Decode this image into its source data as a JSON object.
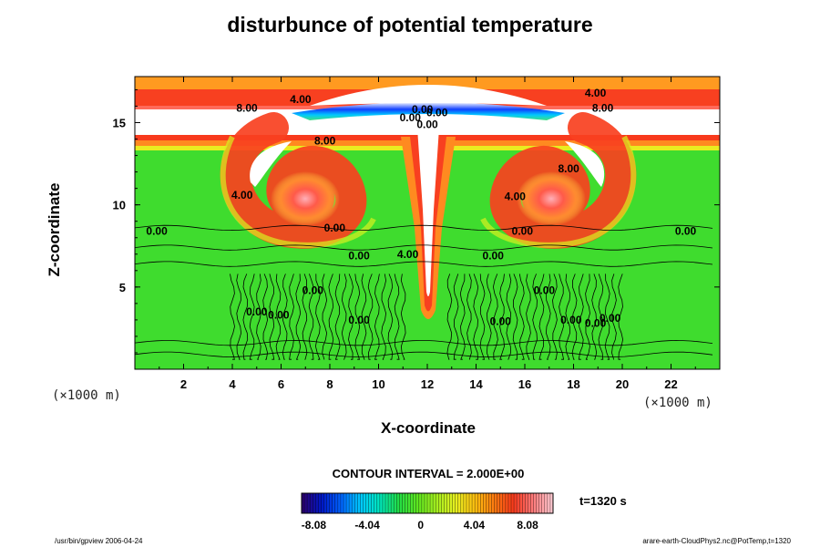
{
  "chart_data": {
    "type": "heatmap",
    "title": "disturbunce of potential temperature",
    "xlabel": "X-coordinate",
    "ylabel": "Z-coordinate",
    "x_unit": "(×1000 m)",
    "y_unit": "(×1000 m)",
    "xlim": [
      0,
      24
    ],
    "ylim": [
      0,
      17.8
    ],
    "x_ticks": [
      2,
      4,
      6,
      8,
      10,
      12,
      14,
      16,
      18,
      20,
      22
    ],
    "y_ticks": [
      5,
      10,
      15
    ],
    "contour_interval": "CONTOUR INTERVAL = 2.000E+00",
    "time_label": "t=1320 s",
    "colorbar": {
      "min": -9.0,
      "max": 10.0,
      "ticks": [
        {
          "value": -8.08,
          "label": "-8.08"
        },
        {
          "value": -4.04,
          "label": "-4.04"
        },
        {
          "value": 0,
          "label": "0"
        },
        {
          "value": 4.04,
          "label": "4.04"
        },
        {
          "value": 8.08,
          "label": "8.08"
        }
      ],
      "colors": [
        "#2a0070",
        "#0018c8",
        "#0064ff",
        "#00c8ff",
        "#00e6be",
        "#22dc46",
        "#5ee620",
        "#a6ef20",
        "#e8f020",
        "#ffc010",
        "#ff7a10",
        "#f83a1c",
        "#ff7878",
        "#ffc8d0"
      ]
    },
    "contour_labels": [
      {
        "text": "8.00",
        "x": 4.6,
        "y": 15.9
      },
      {
        "text": "4.00",
        "x": 6.8,
        "y": 16.4
      },
      {
        "text": "0.00",
        "x": 11.8,
        "y": 15.8
      },
      {
        "text": "0.00",
        "x": 12.4,
        "y": 15.6
      },
      {
        "text": "0.00",
        "x": 11.3,
        "y": 15.3
      },
      {
        "text": "0.00",
        "x": 12.0,
        "y": 14.9
      },
      {
        "text": "4.00",
        "x": 18.9,
        "y": 16.8
      },
      {
        "text": "8.00",
        "x": 19.2,
        "y": 15.9
      },
      {
        "text": "8.00",
        "x": 7.8,
        "y": 13.9
      },
      {
        "text": "8.00",
        "x": 17.8,
        "y": 12.2
      },
      {
        "text": "4.00",
        "x": 4.4,
        "y": 10.6
      },
      {
        "text": "4.00",
        "x": 15.6,
        "y": 10.5
      },
      {
        "text": "0.00",
        "x": 0.9,
        "y": 8.4
      },
      {
        "text": "0.00",
        "x": 8.2,
        "y": 8.6
      },
      {
        "text": "0.00",
        "x": 15.9,
        "y": 8.4
      },
      {
        "text": "0.00",
        "x": 22.6,
        "y": 8.4
      },
      {
        "text": "4.00",
        "x": 11.2,
        "y": 7.0
      },
      {
        "text": "0.00",
        "x": 9.2,
        "y": 6.9
      },
      {
        "text": "0.00",
        "x": 14.7,
        "y": 6.9
      },
      {
        "text": "0.00",
        "x": 7.3,
        "y": 4.8
      },
      {
        "text": "0.00",
        "x": 16.8,
        "y": 4.8
      },
      {
        "text": "0.00",
        "x": 5.0,
        "y": 3.5
      },
      {
        "text": "0.00",
        "x": 5.9,
        "y": 3.3
      },
      {
        "text": "0.00",
        "x": 9.2,
        "y": 3.0
      },
      {
        "text": "0.00",
        "x": 15.0,
        "y": 2.9
      },
      {
        "text": "0.00",
        "x": 17.9,
        "y": 3.0
      },
      {
        "text": "0.00",
        "x": 18.9,
        "y": 2.8
      },
      {
        "text": "0.00",
        "x": 19.5,
        "y": 3.1
      }
    ],
    "footer_left": "/usr/bin/gpview 2006-04-24",
    "footer_right": "arare-earth-CloudPhys2.nc@PotTemp,t=1320"
  }
}
